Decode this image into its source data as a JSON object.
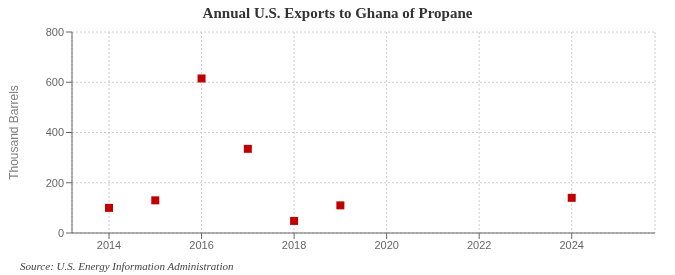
{
  "chart_data": {
    "type": "scatter",
    "title": "Annual U.S. Exports to Ghana of Propane",
    "y_label": "Thousand Barrels",
    "annotations": [
      "Source: U.S. Energy Information Administration"
    ],
    "x": [
      2014,
      2015,
      2016,
      2017,
      2018,
      2019,
      2024
    ],
    "values": [
      100,
      130,
      615,
      335,
      48,
      110,
      140
    ],
    "color": "#c00000",
    "marker": "square",
    "xlim": [
      2013.2,
      2025.8
    ],
    "ylim": [
      0,
      800
    ],
    "xticks": [
      2014,
      2016,
      2018,
      2020,
      2022,
      2024
    ],
    "yticks": [
      0,
      200,
      400,
      600,
      800
    ],
    "grid": true
  }
}
